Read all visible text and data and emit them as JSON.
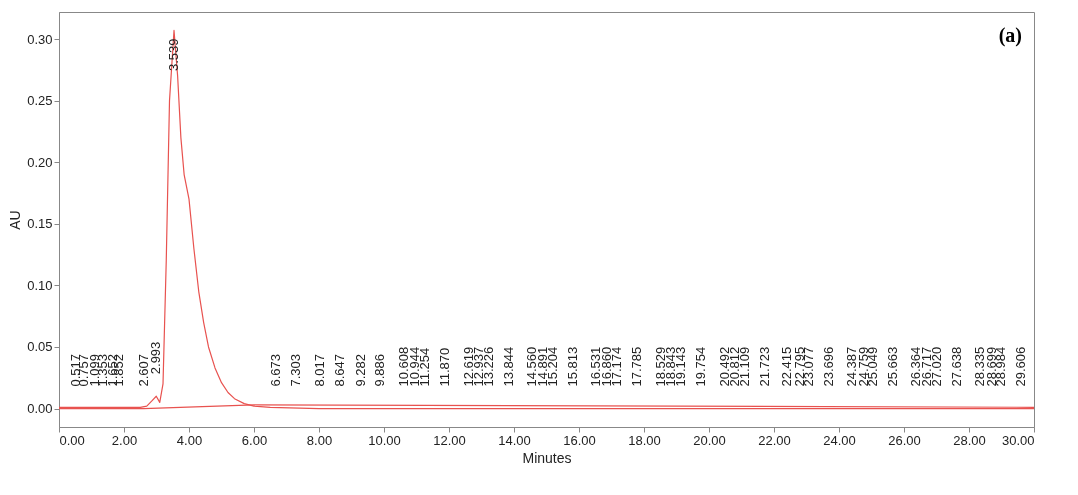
{
  "chart_data": {
    "type": "line",
    "xlabel": "Minutes",
    "ylabel": "AU",
    "xlim": [
      0,
      30
    ],
    "ylim": [
      -0.015,
      0.322
    ],
    "xticks": [
      {
        "value": 0,
        "label": "0.00"
      },
      {
        "value": 2,
        "label": "2.00"
      },
      {
        "value": 4,
        "label": "4.00"
      },
      {
        "value": 6,
        "label": "6.00"
      },
      {
        "value": 8,
        "label": "8.00"
      },
      {
        "value": 10,
        "label": "10.00"
      },
      {
        "value": 12,
        "label": "12.00"
      },
      {
        "value": 14,
        "label": "14.00"
      },
      {
        "value": 16,
        "label": "16.00"
      },
      {
        "value": 18,
        "label": "18.00"
      },
      {
        "value": 20,
        "label": "20.00"
      },
      {
        "value": 22,
        "label": "22.00"
      },
      {
        "value": 24,
        "label": "24.00"
      },
      {
        "value": 26,
        "label": "26.00"
      },
      {
        "value": 28,
        "label": "28.00"
      },
      {
        "value": 30,
        "label": "30.00"
      }
    ],
    "yticks": [
      {
        "value": 0,
        "label": "0.00"
      },
      {
        "value": 0.05,
        "label": "0.05"
      },
      {
        "value": 0.1,
        "label": "0.10"
      },
      {
        "value": 0.15,
        "label": "0.15"
      },
      {
        "value": 0.2,
        "label": "0.20"
      },
      {
        "value": 0.25,
        "label": "0.25"
      },
      {
        "value": 0.3,
        "label": "0.30"
      }
    ],
    "marker": "none",
    "line_style": "solid",
    "series": [
      {
        "color": "#e8524f",
        "x": [
          0,
          0.5,
          1,
          1.5,
          2,
          2.5,
          2.7,
          2.85,
          2.993,
          3.1,
          3.2,
          3.3,
          3.4,
          3.539,
          3.65,
          3.75,
          3.85,
          4.0,
          4.15,
          4.3,
          4.45,
          4.6,
          4.8,
          5.0,
          5.2,
          5.4,
          5.7,
          6.0,
          6.5,
          8,
          10,
          15,
          20,
          25,
          30
        ],
        "values": [
          0.001,
          0.001,
          0.001,
          0.001,
          0.001,
          0.001,
          0.002,
          0.006,
          0.01,
          0.005,
          0.02,
          0.12,
          0.25,
          0.307,
          0.27,
          0.22,
          0.19,
          0.17,
          0.13,
          0.095,
          0.07,
          0.05,
          0.033,
          0.021,
          0.013,
          0.008,
          0.004,
          0.002,
          0.001,
          0,
          0,
          0,
          0,
          0,
          0
        ]
      },
      {
        "color": "#e8524f",
        "x": [
          0,
          2.6,
          6.0,
          30
        ],
        "values": [
          0,
          0,
          0.003,
          0.001
        ]
      }
    ],
    "annotations": [
      {
        "text": "0.517",
        "x": 0.517,
        "y": 0
      },
      {
        "text": "0.757",
        "x": 0.757,
        "y": 0
      },
      {
        "text": "1.099",
        "x": 1.099,
        "y": 0
      },
      {
        "text": "1.353",
        "x": 1.353,
        "y": 0
      },
      {
        "text": "1.652",
        "x": 1.652,
        "y": 0
      },
      {
        "text": "1.852",
        "x": 1.852,
        "y": 0
      },
      {
        "text": "2.607",
        "x": 2.607,
        "y": 0
      },
      {
        "text": "2.993",
        "x": 2.993,
        "y": 0.01
      },
      {
        "text": "3.539",
        "x": 3.539,
        "y": 0.307
      },
      {
        "text": "6.673",
        "x": 6.673,
        "y": 0
      },
      {
        "text": "7.303",
        "x": 7.303,
        "y": 0
      },
      {
        "text": "8.017",
        "x": 8.017,
        "y": 0
      },
      {
        "text": "8.647",
        "x": 8.647,
        "y": 0
      },
      {
        "text": "9.282",
        "x": 9.282,
        "y": 0
      },
      {
        "text": "9.886",
        "x": 9.886,
        "y": 0
      },
      {
        "text": "10.608",
        "x": 10.608,
        "y": 0
      },
      {
        "text": "10.944",
        "x": 10.944,
        "y": 0
      },
      {
        "text": "11.254",
        "x": 11.254,
        "y": 0
      },
      {
        "text": "11.870",
        "x": 11.87,
        "y": 0
      },
      {
        "text": "12.619",
        "x": 12.619,
        "y": 0
      },
      {
        "text": "12.937",
        "x": 12.937,
        "y": 0
      },
      {
        "text": "13.226",
        "x": 13.226,
        "y": 0
      },
      {
        "text": "13.844",
        "x": 13.844,
        "y": 0
      },
      {
        "text": "14.560",
        "x": 14.56,
        "y": 0
      },
      {
        "text": "14.891",
        "x": 14.891,
        "y": 0
      },
      {
        "text": "15.204",
        "x": 15.204,
        "y": 0
      },
      {
        "text": "15.813",
        "x": 15.813,
        "y": 0
      },
      {
        "text": "16.531",
        "x": 16.531,
        "y": 0
      },
      {
        "text": "16.860",
        "x": 16.86,
        "y": 0
      },
      {
        "text": "17.174",
        "x": 17.174,
        "y": 0
      },
      {
        "text": "17.785",
        "x": 17.785,
        "y": 0
      },
      {
        "text": "18.529",
        "x": 18.529,
        "y": 0
      },
      {
        "text": "18.843",
        "x": 18.843,
        "y": 0
      },
      {
        "text": "19.143",
        "x": 19.143,
        "y": 0
      },
      {
        "text": "19.754",
        "x": 19.754,
        "y": 0
      },
      {
        "text": "20.492",
        "x": 20.492,
        "y": 0
      },
      {
        "text": "20.812",
        "x": 20.812,
        "y": 0
      },
      {
        "text": "21.109",
        "x": 21.109,
        "y": 0
      },
      {
        "text": "21.723",
        "x": 21.723,
        "y": 0
      },
      {
        "text": "22.415",
        "x": 22.415,
        "y": 0
      },
      {
        "text": "22.795",
        "x": 22.795,
        "y": 0
      },
      {
        "text": "23.077",
        "x": 23.077,
        "y": 0
      },
      {
        "text": "23.696",
        "x": 23.696,
        "y": 0
      },
      {
        "text": "24.387",
        "x": 24.387,
        "y": 0
      },
      {
        "text": "24.759",
        "x": 24.759,
        "y": 0
      },
      {
        "text": "25.049",
        "x": 25.049,
        "y": 0
      },
      {
        "text": "25.663",
        "x": 25.663,
        "y": 0
      },
      {
        "text": "26.364",
        "x": 26.364,
        "y": 0
      },
      {
        "text": "26.717",
        "x": 26.717,
        "y": 0
      },
      {
        "text": "27.020",
        "x": 27.02,
        "y": 0
      },
      {
        "text": "27.638",
        "x": 27.638,
        "y": 0
      },
      {
        "text": "28.335",
        "x": 28.335,
        "y": 0
      },
      {
        "text": "28.699",
        "x": 28.699,
        "y": 0
      },
      {
        "text": "28.984",
        "x": 28.984,
        "y": 0
      },
      {
        "text": "29.606",
        "x": 29.606,
        "y": 0
      },
      "(a)"
    ]
  }
}
